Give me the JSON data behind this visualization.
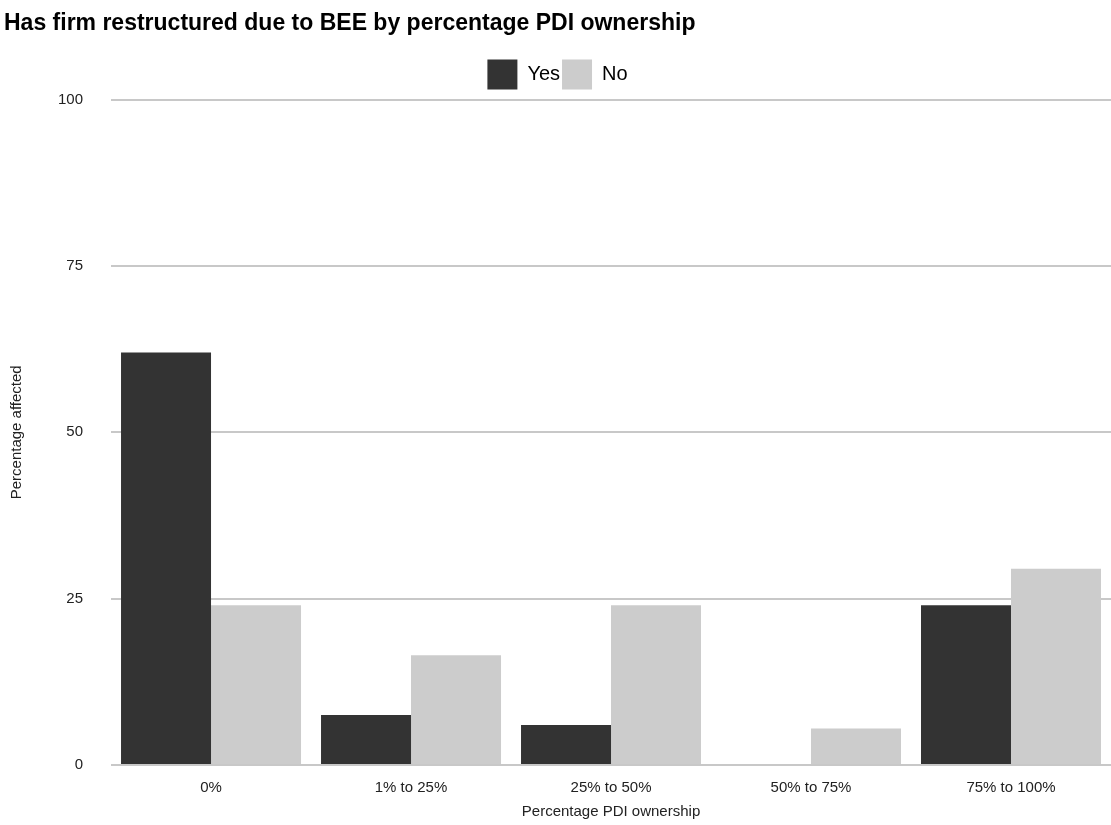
{
  "chart_data": {
    "type": "bar",
    "title": "Has firm restructured due to BEE by percentage PDI ownership",
    "xlabel": "Percentage PDI ownership",
    "ylabel": "Percentage affected",
    "categories": [
      "0%",
      "1% to 25%",
      "25% to 50%",
      "50% to 75%",
      "75% to 100%"
    ],
    "series": [
      {
        "name": "Yes",
        "color": "#333333",
        "values": [
          62,
          7.5,
          6,
          0,
          24
        ]
      },
      {
        "name": "No",
        "color": "#cccccc",
        "values": [
          24,
          16.5,
          24,
          5.5,
          29.5
        ]
      }
    ],
    "ylim": [
      0,
      100
    ],
    "yticks": [
      0,
      25,
      50,
      75,
      100
    ],
    "grid": "y",
    "legend": "top"
  }
}
